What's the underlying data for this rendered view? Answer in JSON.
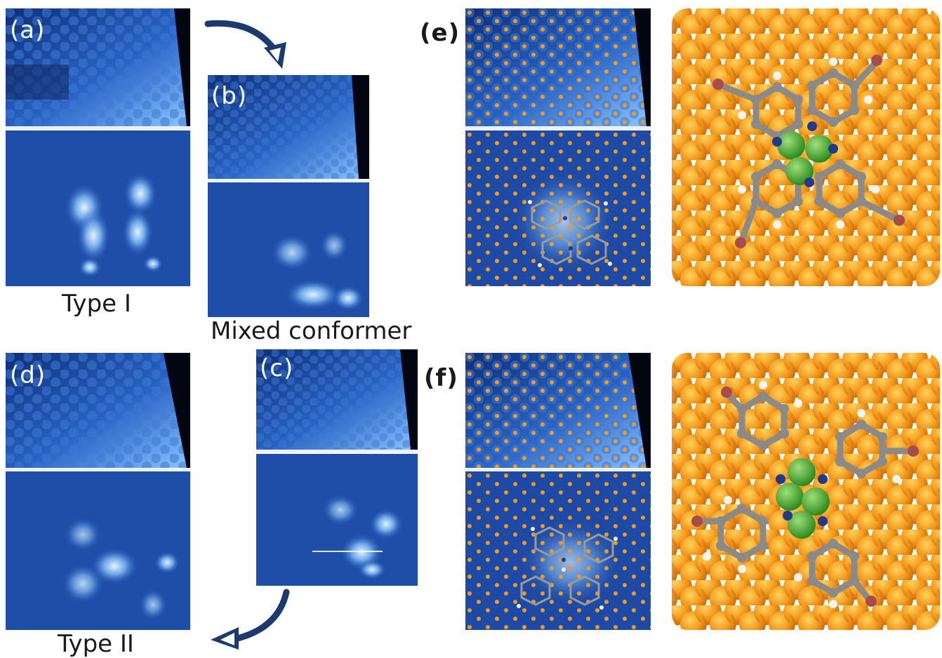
{
  "panel_labels": {
    "a": "(a)",
    "b": "(b)",
    "c": "(c)",
    "d": "(d)",
    "e": "(e)",
    "f": "(f)"
  },
  "captions": {
    "type_one": "Type I",
    "mixed": "Mixed conformer",
    "type_two": "Type II"
  },
  "colors": {
    "stm_dark": "#0c2a6b",
    "stm_mid": "#1f55b5",
    "stm_bright": "#bfe3ff",
    "substrate_atom": "#f39a1e",
    "center_atom": "#3fa82a",
    "carbon": "#8a8a8a",
    "hydrogen": "#f2f2f2",
    "nitrogen": "#233a8c",
    "bromine": "#a84b4b",
    "arrow": "#1d3a6e"
  }
}
